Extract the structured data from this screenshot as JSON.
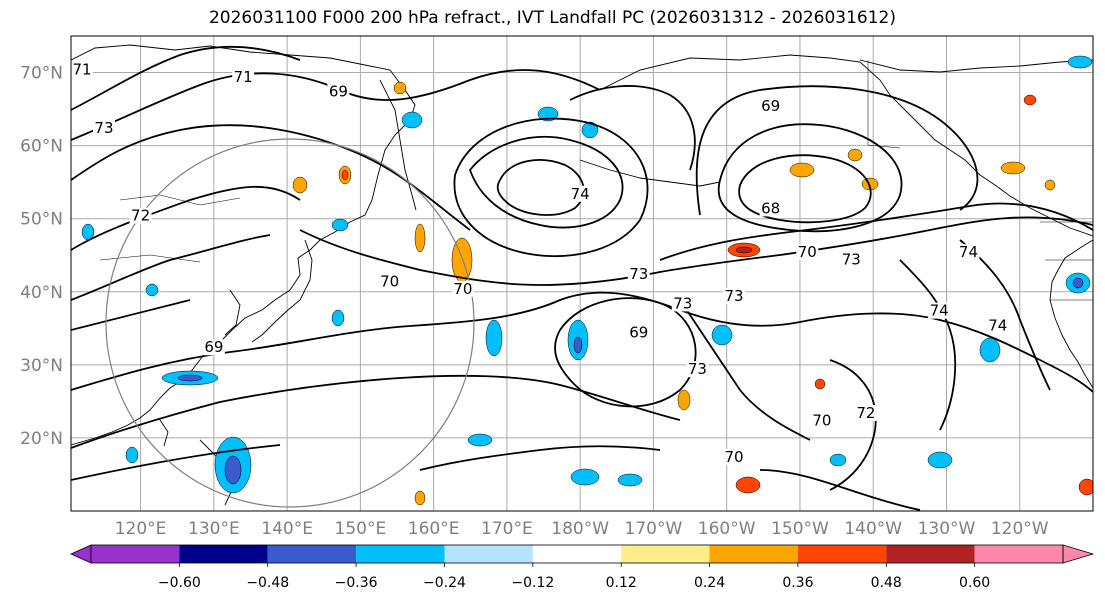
{
  "title": "2026031100 F000 200 hPa refract., IVT Landfall PC (2026031312 - 2026031612)",
  "map": {
    "lat_labels": [
      {
        "lat": 70,
        "text": "70°N"
      },
      {
        "lat": 60,
        "text": "60°N"
      },
      {
        "lat": 50,
        "text": "50°N"
      },
      {
        "lat": 40,
        "text": "40°N"
      },
      {
        "lat": 30,
        "text": "30°N"
      },
      {
        "lat": 20,
        "text": "20°N"
      }
    ],
    "lon_labels": [
      {
        "lon": 120,
        "text": "120°E"
      },
      {
        "lon": 130,
        "text": "130°E"
      },
      {
        "lon": 140,
        "text": "140°E"
      },
      {
        "lon": 150,
        "text": "150°E"
      },
      {
        "lon": 160,
        "text": "160°E"
      },
      {
        "lon": 170,
        "text": "170°E"
      },
      {
        "lon": 180,
        "text": "180°W"
      },
      {
        "lon": 190,
        "text": "170°W"
      },
      {
        "lon": 200,
        "text": "160°W"
      },
      {
        "lon": 210,
        "text": "150°W"
      },
      {
        "lon": 220,
        "text": "140°W"
      },
      {
        "lon": 230,
        "text": "130°W"
      },
      {
        "lon": 240,
        "text": "120°W"
      }
    ],
    "lon_range": [
      110.5,
      250
    ],
    "lat_range": [
      10,
      75
    ],
    "grid": true,
    "contour_labels": [
      {
        "text": "71",
        "lon": 112,
        "lat": 70
      },
      {
        "text": "73",
        "lon": 115,
        "lat": 62
      },
      {
        "text": "72",
        "lon": 120,
        "lat": 50
      },
      {
        "text": "71",
        "lon": 134,
        "lat": 69
      },
      {
        "text": "69",
        "lon": 147,
        "lat": 67
      },
      {
        "text": "70",
        "lon": 154,
        "lat": 41
      },
      {
        "text": "70",
        "lon": 164,
        "lat": 40
      },
      {
        "text": "69",
        "lon": 130,
        "lat": 32
      },
      {
        "text": "74",
        "lon": 180,
        "lat": 53
      },
      {
        "text": "73",
        "lon": 188,
        "lat": 42
      },
      {
        "text": "73",
        "lon": 194,
        "lat": 38
      },
      {
        "text": "69",
        "lon": 188,
        "lat": 34
      },
      {
        "text": "73",
        "lon": 201,
        "lat": 39
      },
      {
        "text": "73",
        "lon": 196,
        "lat": 29
      },
      {
        "text": "69",
        "lon": 206,
        "lat": 65
      },
      {
        "text": "68",
        "lon": 206,
        "lat": 51
      },
      {
        "text": "70",
        "lon": 211,
        "lat": 45
      },
      {
        "text": "73",
        "lon": 217,
        "lat": 44
      },
      {
        "text": "74",
        "lon": 233,
        "lat": 45
      },
      {
        "text": "74",
        "lon": 229,
        "lat": 37
      },
      {
        "text": "74",
        "lon": 237,
        "lat": 35
      },
      {
        "text": "72",
        "lon": 219,
        "lat": 23
      },
      {
        "text": "70",
        "lon": 213,
        "lat": 22
      },
      {
        "text": "70",
        "lon": 201,
        "lat": 17
      }
    ],
    "circle": {
      "center_lon": 140,
      "center_lat": 36,
      "radius_lat": 25
    }
  },
  "colorbar": {
    "colors": [
      "#9932cc",
      "#00008b",
      "#3a5bcd",
      "#00bfff",
      "#b2e3ff",
      "#ffffff",
      "#ffed8a",
      "#ffa500",
      "#ff4500",
      "#b22222",
      "#ff88aa"
    ],
    "ticks": [
      "−0.60",
      "−0.48",
      "−0.36",
      "−0.24",
      "−0.12",
      "0.12",
      "0.24",
      "0.36",
      "0.48",
      "0.60"
    ]
  }
}
